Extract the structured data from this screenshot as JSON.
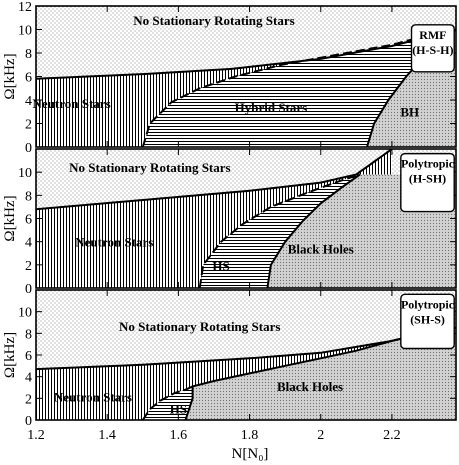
{
  "chart_data": [
    {
      "type": "area",
      "tag": [
        "RMF",
        "(H-S-H)"
      ],
      "ylabel": "Ω[kHz]",
      "ylim": [
        0,
        12
      ],
      "yticks": [
        0,
        2,
        4,
        6,
        8,
        10,
        12
      ],
      "region_labels": {
        "no_stationary": "No Stationary Rotating Stars",
        "neutron": "Neutron Stars",
        "hybrid": "Hybrid Stars",
        "bh": "BH"
      },
      "curves": {
        "kepler": [
          [
            1.2,
            5.8
          ],
          [
            1.5,
            6.2
          ],
          [
            1.75,
            6.65
          ],
          [
            2.0,
            7.5
          ],
          [
            2.2,
            8.6
          ],
          [
            2.38,
            10.0
          ]
        ],
        "hybrid_onset": [
          [
            1.5,
            0
          ],
          [
            1.52,
            2.0
          ],
          [
            1.58,
            3.8
          ],
          [
            1.66,
            5.0
          ],
          [
            1.76,
            6.0
          ],
          [
            1.89,
            7.0
          ],
          [
            2.0,
            7.6
          ],
          [
            2.2,
            8.7
          ],
          [
            2.3,
            9.5
          ],
          [
            2.38,
            10.0
          ]
        ],
        "bh_onset": [
          [
            2.13,
            0
          ],
          [
            2.15,
            2.0
          ],
          [
            2.19,
            4.0
          ],
          [
            2.24,
            6.0
          ],
          [
            2.3,
            8.0
          ],
          [
            2.35,
            9.3
          ],
          [
            2.38,
            10.0
          ]
        ]
      }
    },
    {
      "type": "area",
      "tag": [
        "Polytropic",
        "(H-SH)"
      ],
      "ylabel": "Ω[kHz]",
      "ylim": [
        0,
        12
      ],
      "yticks": [
        0,
        2,
        4,
        6,
        8,
        10
      ],
      "region_labels": {
        "no_stationary": "No Stationary Rotating Stars",
        "neutron": "Neutron Stars",
        "hybrid": "HS",
        "bh": "Black Holes"
      },
      "curves": {
        "kepler": [
          [
            1.2,
            6.8
          ],
          [
            1.5,
            7.6
          ],
          [
            1.8,
            8.4
          ],
          [
            2.0,
            9.1
          ],
          [
            2.1,
            9.8
          ],
          [
            2.2,
            12.0
          ]
        ],
        "hybrid_onset": [
          [
            1.66,
            0
          ],
          [
            1.67,
            2.0
          ],
          [
            1.72,
            4.0
          ],
          [
            1.78,
            5.5
          ],
          [
            1.86,
            7.0
          ],
          [
            1.96,
            8.2
          ],
          [
            2.05,
            9.2
          ],
          [
            2.11,
            9.8
          ]
        ],
        "bh_onset": [
          [
            1.85,
            0
          ],
          [
            1.86,
            2.0
          ],
          [
            1.9,
            4.0
          ],
          [
            1.95,
            5.8
          ],
          [
            2.0,
            7.3
          ],
          [
            2.06,
            8.7
          ],
          [
            2.11,
            9.8
          ]
        ]
      }
    },
    {
      "type": "area",
      "tag": [
        "Polytropic",
        "(SH-S)"
      ],
      "ylabel": "Ω[kHz]",
      "xlabel": "N[N₀]",
      "ylim": [
        0,
        12
      ],
      "yticks": [
        0,
        2,
        4,
        6,
        8,
        10
      ],
      "xlim": [
        1.2,
        2.38
      ],
      "xticks": [
        1.2,
        1.4,
        1.6,
        1.8,
        2,
        2.2
      ],
      "region_labels": {
        "no_stationary": "No Stationary Rotating Stars",
        "neutron": "Neutron Stars",
        "hybrid": "HS",
        "bh": "Black Holes"
      },
      "curves": {
        "kepler": [
          [
            1.2,
            4.7
          ],
          [
            1.5,
            5.1
          ],
          [
            1.8,
            5.7
          ],
          [
            2.0,
            6.2
          ],
          [
            2.2,
            7.3
          ],
          [
            2.3,
            8.1
          ],
          [
            2.38,
            8.5
          ]
        ],
        "hybrid_onset": [
          [
            1.5,
            0
          ],
          [
            1.52,
            1.0
          ],
          [
            1.55,
            1.8
          ],
          [
            1.59,
            2.5
          ],
          [
            1.62,
            2.8
          ],
          [
            1.64,
            3.1
          ]
        ],
        "bh_onset": [
          [
            1.62,
            0
          ],
          [
            1.63,
            1.0
          ],
          [
            1.64,
            2.0
          ],
          [
            1.64,
            3.1
          ],
          [
            1.7,
            3.6
          ],
          [
            1.8,
            4.3
          ],
          [
            1.9,
            5.0
          ],
          [
            2.0,
            5.7
          ],
          [
            2.1,
            6.4
          ],
          [
            2.2,
            7.3
          ],
          [
            2.3,
            8.1
          ],
          [
            2.38,
            8.5
          ]
        ]
      }
    }
  ]
}
